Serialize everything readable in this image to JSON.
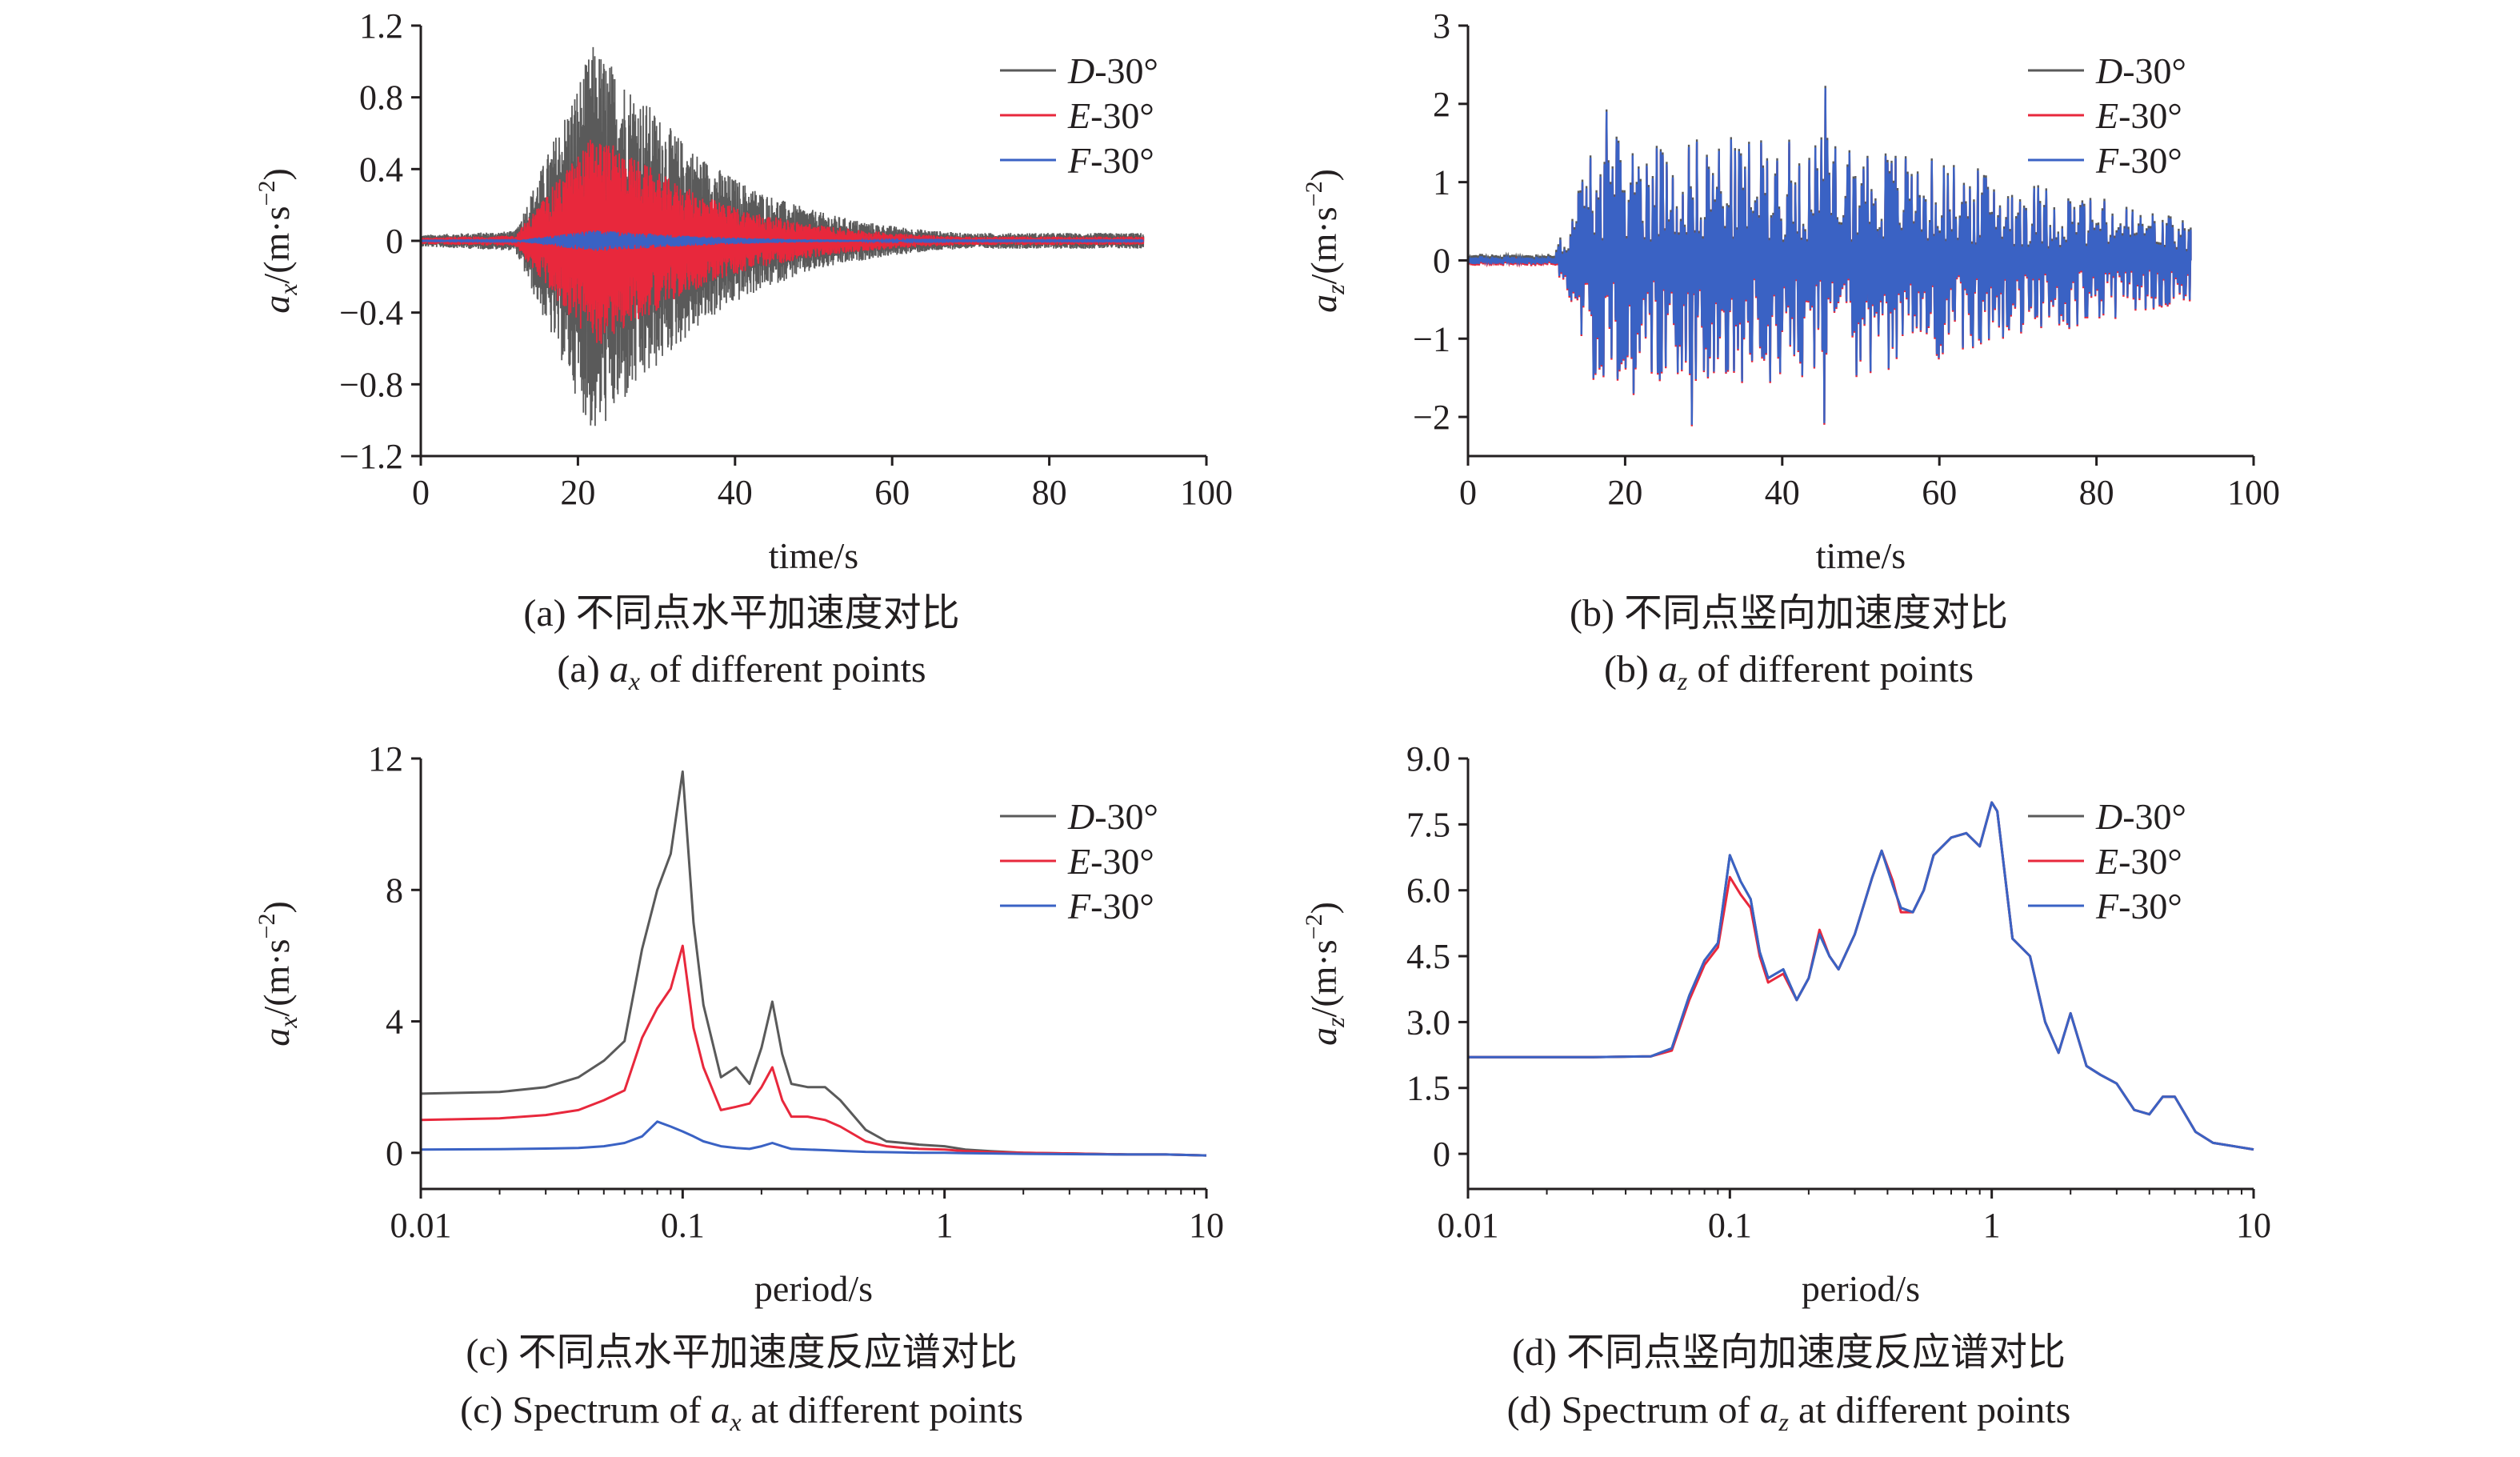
{
  "chart_data": [
    {
      "type": "line",
      "id": "a",
      "xlabel": "time/s",
      "ylabel_base": "a",
      "ylabel_sub": "x",
      "ylabel_unit": "/(m·s",
      "ylabel_exp": "−2",
      "xlim": [
        0,
        100
      ],
      "ylim": [
        -1.2,
        1.2
      ],
      "x_scale": "linear",
      "xticks": [
        0,
        20,
        40,
        60,
        80,
        100
      ],
      "xtick_labels": [
        "0",
        "20",
        "40",
        "60",
        "80",
        "100"
      ],
      "yticks": [
        -1.2,
        -0.8,
        -0.4,
        0,
        0.4,
        0.8,
        1.2
      ],
      "ytick_labels": [
        "−1.2",
        "−0.8",
        "−0.4",
        "0",
        "0.4",
        "0.8",
        "1.2"
      ],
      "legend_position": "top-right",
      "series": [
        {
          "name": "D",
          "suffix": "-30°",
          "color": "#5a5a5a",
          "envelope_peak": 1.1,
          "duration": 92
        },
        {
          "name": "E",
          "suffix": "-30°",
          "color": "#e8283c",
          "envelope_peak": 0.6,
          "duration": 92
        },
        {
          "name": "F",
          "suffix": "-30°",
          "color": "#3a62c4",
          "envelope_peak": 0.06,
          "duration": 92
        }
      ],
      "caption_cn": "(a) 不同点水平加速度对比",
      "caption_en_pre": "(a) ",
      "caption_en_sym": "a",
      "caption_en_sub": "x",
      "caption_en_post": " of different points"
    },
    {
      "type": "line",
      "id": "b",
      "xlabel": "time/s",
      "ylabel_base": "a",
      "ylabel_sub": "z",
      "ylabel_unit": "/(m·s",
      "ylabel_exp": "−2",
      "xlim": [
        0,
        100
      ],
      "ylim": [
        -2.5,
        3
      ],
      "x_scale": "linear",
      "xticks": [
        0,
        20,
        40,
        60,
        80,
        100
      ],
      "xtick_labels": [
        "0",
        "20",
        "40",
        "60",
        "80",
        "100"
      ],
      "yticks": [
        -2,
        -1,
        0,
        1,
        2,
        3
      ],
      "ytick_labels": [
        "−2",
        "−1",
        "0",
        "1",
        "2",
        "3"
      ],
      "legend_position": "top-right",
      "series": [
        {
          "name": "D",
          "suffix": "-30°",
          "color": "#5a5a5a"
        },
        {
          "name": "E",
          "suffix": "-30°",
          "color": "#e8283c"
        },
        {
          "name": "F",
          "suffix": "-30°",
          "color": "#3a62c4"
        }
      ],
      "peaks": [
        [
          45.5,
          2.2
        ],
        [
          45.3,
          -2.08
        ],
        [
          28.5,
          -2.1
        ],
        [
          17.5,
          1.9
        ],
        [
          21,
          -1.7
        ]
      ],
      "caption_cn": "(b) 不同点竖向加速度对比",
      "caption_en_pre": "(b) ",
      "caption_en_sym": "a",
      "caption_en_sub": "z",
      "caption_en_post": " of different points"
    },
    {
      "type": "line",
      "id": "c",
      "xlabel": "period/s",
      "ylabel_base": "a",
      "ylabel_sub": "x",
      "ylabel_unit": "/(m·s",
      "ylabel_exp": "−2",
      "xlim": [
        0.01,
        10
      ],
      "ylim": [
        -1.1,
        12
      ],
      "x_scale": "log",
      "xticks": [
        0.01,
        0.1,
        1,
        10
      ],
      "xtick_labels": [
        "0.01",
        "0.1",
        "1",
        "10"
      ],
      "yticks": [
        0,
        4,
        8,
        12
      ],
      "ytick_labels": [
        "0",
        "4",
        "8",
        "12"
      ],
      "legend_position": "top-right",
      "series": [
        {
          "name": "D",
          "suffix": "-30°",
          "color": "#5a5a5a",
          "x": [
            0.01,
            0.02,
            0.03,
            0.04,
            0.05,
            0.06,
            0.07,
            0.08,
            0.09,
            0.1,
            0.11,
            0.12,
            0.14,
            0.16,
            0.18,
            0.2,
            0.22,
            0.24,
            0.26,
            0.3,
            0.35,
            0.4,
            0.5,
            0.6,
            0.7,
            0.8,
            1.0,
            1.2,
            1.5,
            2,
            3,
            5,
            7,
            10
          ],
          "values": [
            1.8,
            1.85,
            2.0,
            2.3,
            2.8,
            3.4,
            6.2,
            8.0,
            9.1,
            11.6,
            7.0,
            4.5,
            2.3,
            2.6,
            2.1,
            3.2,
            4.6,
            3.0,
            2.1,
            2.0,
            2.0,
            1.6,
            0.7,
            0.35,
            0.3,
            0.25,
            0.2,
            0.1,
            0.05,
            0.0,
            -0.02,
            -0.05,
            -0.05,
            -0.08
          ]
        },
        {
          "name": "E",
          "suffix": "-30°",
          "color": "#e8283c",
          "x": [
            0.01,
            0.02,
            0.03,
            0.04,
            0.05,
            0.06,
            0.07,
            0.08,
            0.09,
            0.1,
            0.11,
            0.12,
            0.14,
            0.16,
            0.18,
            0.2,
            0.22,
            0.24,
            0.26,
            0.3,
            0.35,
            0.4,
            0.5,
            0.6,
            0.7,
            0.8,
            1.0,
            1.2,
            1.5,
            2,
            3,
            5,
            7,
            10
          ],
          "values": [
            1.0,
            1.05,
            1.15,
            1.3,
            1.6,
            1.9,
            3.5,
            4.4,
            5.0,
            6.3,
            3.8,
            2.6,
            1.3,
            1.4,
            1.5,
            2.0,
            2.6,
            1.6,
            1.1,
            1.1,
            1.0,
            0.8,
            0.35,
            0.2,
            0.15,
            0.12,
            0.1,
            0.05,
            0.02,
            0.0,
            -0.02,
            -0.05,
            -0.05,
            -0.08
          ]
        },
        {
          "name": "F",
          "suffix": "-30°",
          "color": "#3a62c4",
          "x": [
            0.01,
            0.02,
            0.03,
            0.04,
            0.05,
            0.06,
            0.07,
            0.08,
            0.09,
            0.1,
            0.11,
            0.12,
            0.14,
            0.16,
            0.18,
            0.2,
            0.22,
            0.24,
            0.26,
            0.3,
            0.35,
            0.4,
            0.5,
            0.6,
            0.7,
            0.8,
            1.0,
            1.2,
            1.5,
            2,
            3,
            5,
            7,
            10
          ],
          "values": [
            0.1,
            0.11,
            0.13,
            0.15,
            0.2,
            0.3,
            0.5,
            0.95,
            0.8,
            0.65,
            0.5,
            0.35,
            0.2,
            0.15,
            0.12,
            0.2,
            0.3,
            0.2,
            0.12,
            0.1,
            0.08,
            0.06,
            0.03,
            0.02,
            0.01,
            0.0,
            0.0,
            -0.01,
            -0.02,
            -0.03,
            -0.04,
            -0.05,
            -0.05,
            -0.08
          ]
        }
      ],
      "caption_cn": "(c) 不同点水平加速度反应谱对比",
      "caption_en_pre": "(c) Spectrum of ",
      "caption_en_sym": "a",
      "caption_en_sub": "x",
      "caption_en_post": " at different points"
    },
    {
      "type": "line",
      "id": "d",
      "xlabel": "period/s",
      "ylabel_base": "a",
      "ylabel_sub": "z",
      "ylabel_unit": "/(m·s",
      "ylabel_exp": "−2",
      "xlim": [
        0.01,
        10
      ],
      "ylim": [
        -0.8,
        9.0
      ],
      "x_scale": "log",
      "xticks": [
        0.01,
        0.1,
        1,
        10
      ],
      "xtick_labels": [
        "0.01",
        "0.1",
        "1",
        "10"
      ],
      "yticks": [
        0,
        1.5,
        3.0,
        4.5,
        6.0,
        7.5,
        9.0
      ],
      "ytick_labels": [
        "0",
        "1.5",
        "3.0",
        "4.5",
        "6.0",
        "7.5",
        "9.0"
      ],
      "legend_position": "top-right",
      "series": [
        {
          "name": "D",
          "suffix": "-30°",
          "color": "#5a5a5a",
          "x": [
            0.01,
            0.03,
            0.05,
            0.06,
            0.07,
            0.08,
            0.09,
            0.1,
            0.11,
            0.12,
            0.13,
            0.14,
            0.16,
            0.18,
            0.2,
            0.22,
            0.24,
            0.26,
            0.3,
            0.35,
            0.38,
            0.42,
            0.45,
            0.5,
            0.55,
            0.6,
            0.7,
            0.8,
            0.9,
            1.0,
            1.05,
            1.1,
            1.2,
            1.4,
            1.6,
            1.8,
            2.0,
            2.3,
            2.6,
            3.0,
            3.5,
            4.0,
            4.5,
            5.0,
            6.0,
            7.0,
            10
          ],
          "values": [
            2.2,
            2.2,
            2.22,
            2.4,
            3.6,
            4.4,
            4.8,
            6.8,
            6.2,
            5.8,
            4.6,
            4.0,
            4.2,
            3.5,
            4.0,
            5.0,
            4.5,
            4.2,
            5.0,
            6.3,
            6.9,
            6.1,
            5.6,
            5.5,
            6.0,
            6.8,
            7.2,
            7.3,
            7.0,
            8.0,
            7.8,
            6.8,
            4.9,
            4.5,
            3.0,
            2.3,
            3.2,
            2.0,
            1.8,
            1.6,
            1.0,
            0.9,
            1.3,
            1.3,
            0.5,
            0.25,
            0.1
          ]
        },
        {
          "name": "E",
          "suffix": "-30°",
          "color": "#e8283c",
          "x": [
            0.01,
            0.03,
            0.05,
            0.06,
            0.07,
            0.08,
            0.09,
            0.1,
            0.11,
            0.12,
            0.13,
            0.14,
            0.16,
            0.18,
            0.2,
            0.22,
            0.24,
            0.26,
            0.3,
            0.35,
            0.38,
            0.42,
            0.45,
            0.5,
            0.55,
            0.6,
            0.7,
            0.8,
            0.9,
            1.0,
            1.05,
            1.1,
            1.2,
            1.4,
            1.6,
            1.8,
            2.0,
            2.3,
            2.6,
            3.0,
            3.5,
            4.0,
            4.5,
            5.0,
            6.0,
            7.0,
            10
          ],
          "values": [
            2.2,
            2.2,
            2.22,
            2.35,
            3.5,
            4.3,
            4.7,
            6.3,
            5.9,
            5.6,
            4.5,
            3.9,
            4.1,
            3.5,
            4.0,
            5.1,
            4.5,
            4.2,
            5.0,
            6.3,
            6.9,
            6.2,
            5.5,
            5.5,
            6.0,
            6.8,
            7.2,
            7.3,
            7.0,
            8.0,
            7.8,
            6.8,
            4.9,
            4.5,
            3.0,
            2.3,
            3.2,
            2.0,
            1.8,
            1.6,
            1.0,
            0.9,
            1.3,
            1.3,
            0.5,
            0.25,
            0.1
          ]
        },
        {
          "name": "F",
          "suffix": "-30°",
          "color": "#3a62c4",
          "x": [
            0.01,
            0.03,
            0.05,
            0.06,
            0.07,
            0.08,
            0.09,
            0.1,
            0.11,
            0.12,
            0.13,
            0.14,
            0.16,
            0.18,
            0.2,
            0.22,
            0.24,
            0.26,
            0.3,
            0.35,
            0.38,
            0.42,
            0.45,
            0.5,
            0.55,
            0.6,
            0.7,
            0.8,
            0.9,
            1.0,
            1.05,
            1.1,
            1.2,
            1.4,
            1.6,
            1.8,
            2.0,
            2.3,
            2.6,
            3.0,
            3.5,
            4.0,
            4.5,
            5.0,
            6.0,
            7.0,
            10
          ],
          "values": [
            2.2,
            2.2,
            2.22,
            2.4,
            3.6,
            4.4,
            4.8,
            6.8,
            6.2,
            5.8,
            4.6,
            4.0,
            4.2,
            3.5,
            4.0,
            5.0,
            4.5,
            4.2,
            5.0,
            6.3,
            6.9,
            6.1,
            5.6,
            5.5,
            6.0,
            6.8,
            7.2,
            7.3,
            7.0,
            8.0,
            7.8,
            6.8,
            4.9,
            4.5,
            3.0,
            2.3,
            3.2,
            2.0,
            1.8,
            1.6,
            1.0,
            0.9,
            1.3,
            1.3,
            0.5,
            0.25,
            0.1
          ]
        }
      ],
      "caption_cn": "(d) 不同点竖向加速度反应谱对比",
      "caption_en_pre": "(d) Spectrum of ",
      "caption_en_sym": "a",
      "caption_en_sub": "z",
      "caption_en_post": " at different points"
    }
  ]
}
